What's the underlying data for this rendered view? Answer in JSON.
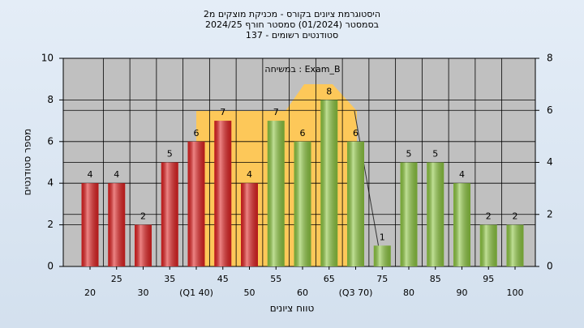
{
  "chart_data": {
    "type": "bar",
    "title": [
      "היסטוגרמת ציונים בקורס - מכניקת מוצקים מ2",
      "בסמסטר  (01/2024)  סמסטר חורף 2024/25",
      "סטודנטים רשומים - 137"
    ],
    "annotation": "במשיחה : Exam_B",
    "x_label": "טווח ציונים",
    "y_label": "מספר סטודנטים",
    "categories": [
      "20",
      "25",
      "30",
      "35",
      "(Q1 40)",
      "45",
      "50",
      "55",
      "60",
      "65",
      "(Q3 70)",
      "75",
      "80",
      "85",
      "90",
      "95",
      "100"
    ],
    "values": [
      4,
      4,
      2,
      5,
      6,
      7,
      4,
      7,
      6,
      8,
      6,
      1,
      5,
      5,
      4,
      2,
      2
    ],
    "colors": [
      "#e02020",
      "#e02020",
      "#e02020",
      "#e02020",
      "#e02020",
      "#e02020",
      "#e02020",
      "#8cc63f",
      "#8cc63f",
      "#8cc63f",
      "#8cc63f",
      "#8cc63f",
      "#8cc63f",
      "#8cc63f",
      "#8cc63f",
      "#8cc63f",
      "#8cc63f"
    ],
    "ylim": [
      0,
      10
    ],
    "yticks": [
      0,
      2,
      4,
      6,
      8,
      10
    ],
    "y2lim": [
      0,
      8
    ],
    "y2ticks": [
      0,
      2,
      4,
      6,
      8
    ],
    "grid": true
  }
}
